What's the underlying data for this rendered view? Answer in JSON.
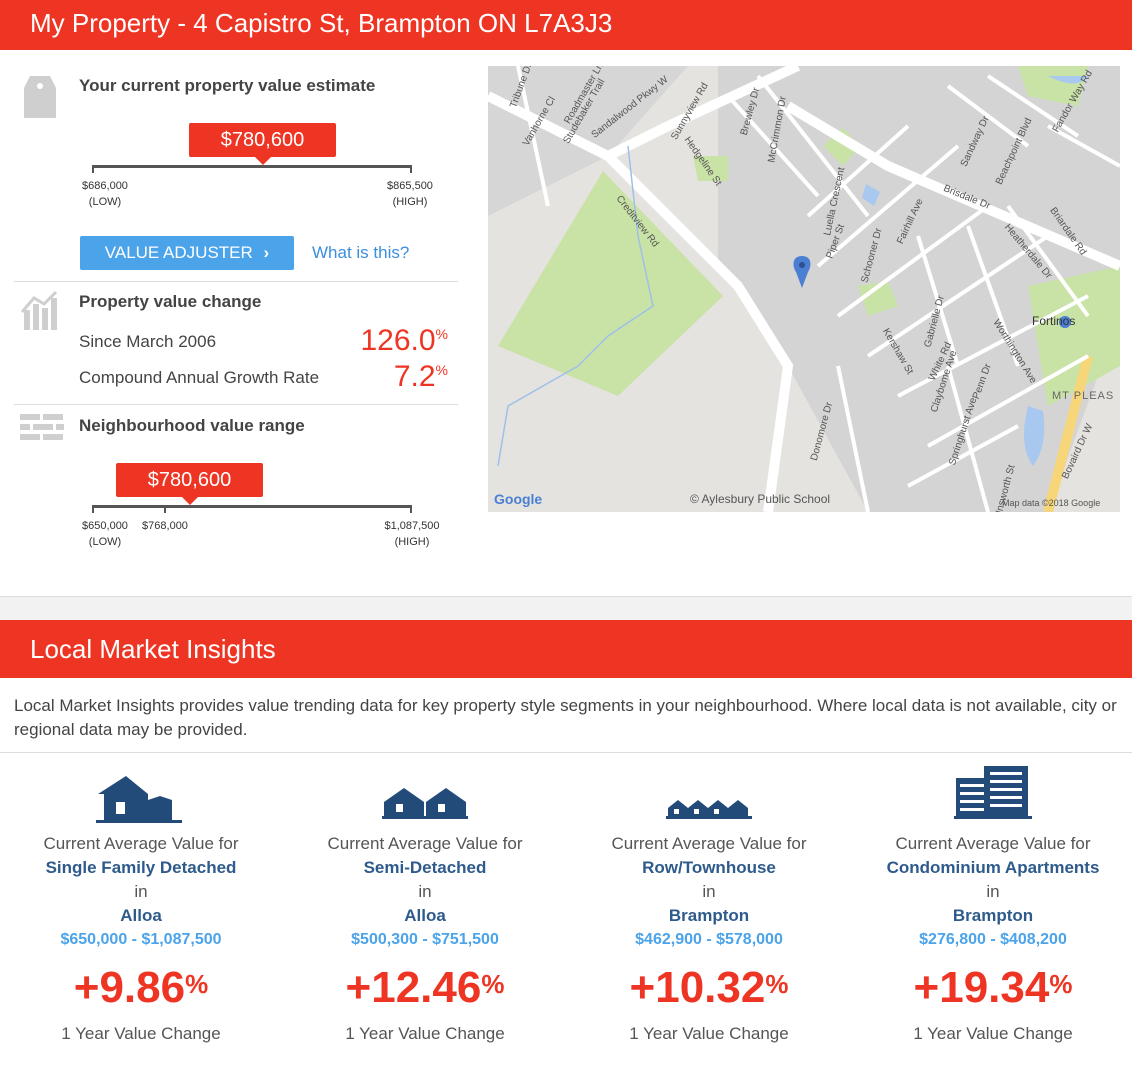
{
  "header": {
    "title": "My Property - 4 Capistro St, Brampton ON L7A3J3"
  },
  "estimate": {
    "title": "Your current property value estimate",
    "value": "$780,600",
    "low_value": "$686,000",
    "low_label": "(LOW)",
    "high_value": "$865,500",
    "high_label": "(HIGH)",
    "adjuster_label": "VALUE ADJUSTER",
    "adjuster_chevron": "›",
    "what_link": "What is this?"
  },
  "change": {
    "title": "Property value change",
    "since_label": "Since March 2006",
    "since_value": "126.0",
    "cagr_label": "Compound Annual Growth Rate",
    "cagr_value": "7.2",
    "pct_symbol": "%"
  },
  "neighbourhood": {
    "title": "Neighbourhood value range",
    "value": "$780,600",
    "low_value": "$650,000",
    "low_label": "(LOW)",
    "mid_value": "$768,000",
    "high_value": "$1,087,500",
    "high_label": "(HIGH)"
  },
  "map": {
    "streets": [
      "Tribune Dr",
      "Vanhorne Cl",
      "Sandalwood Pkwy W",
      "Sunnyview Rd",
      "Hedgeline St",
      "Brewley Dr",
      "McCrimmon Dr",
      "Luella Crescent",
      "Piper St",
      "Schooner Dr",
      "Fairhill Ave",
      "Brisdale Dr",
      "Sandway Dr",
      "Beachpoint Blvd",
      "Fandor Way Rd",
      "Briardale Rd",
      "Heatherdale Dr",
      "Creditview Rd",
      "Gabrielle Dr",
      "Kershaw St",
      "White Rd",
      "Claybome Ave",
      "Springhurst Ave",
      "Worthington Ave",
      "Donomore Dr",
      "Bovaird Dr W",
      "Penn Dr",
      "Unsworth St",
      "Studebaker Trail",
      "Roadmaster Ln"
    ],
    "poi_fortinos": "Fortinos",
    "poi_school": "Aylesbury Public School",
    "area_label": "MT PLEAS",
    "google_logo": "Google",
    "attribution": "Map data ©2018 Google"
  },
  "insights": {
    "title": "Local Market Insights",
    "intro": "Local Market Insights provides value trending data for key property style segments in your neighbourhood. Where local data is not available, city or regional data may be provided.",
    "cards": [
      {
        "icon": "single-family-house-icon",
        "line1": "Current Average Value for",
        "segment": "Single Family Detached",
        "in": "in",
        "location": "Alloa",
        "range": "$650,000 - $1,087,500",
        "change": "+9.86",
        "pct": "%",
        "change_label": "1 Year Value Change"
      },
      {
        "icon": "semi-detached-house-icon",
        "line1": "Current Average Value for",
        "segment": "Semi-Detached",
        "in": "in",
        "location": "Alloa",
        "range": "$500,300 - $751,500",
        "change": "+12.46",
        "pct": "%",
        "change_label": "1 Year Value Change"
      },
      {
        "icon": "townhouse-icon",
        "line1": "Current Average Value for",
        "segment": "Row/Townhouse",
        "in": "in",
        "location": "Brampton",
        "range": "$462,900 - $578,000",
        "change": "+10.32",
        "pct": "%",
        "change_label": "1 Year Value Change"
      },
      {
        "icon": "condo-building-icon",
        "line1": "Current Average Value for",
        "segment": "Condominium Apartments",
        "in": "in",
        "location": "Brampton",
        "range": "$276,800 - $408,200",
        "change": "+19.34",
        "pct": "%",
        "change_label": "1 Year Value Change"
      }
    ]
  },
  "colors": {
    "brand_red": "#ee3524",
    "link_blue": "#3a8fdd",
    "button_blue": "#4ba3ea",
    "navy": "#2e5b8c"
  }
}
